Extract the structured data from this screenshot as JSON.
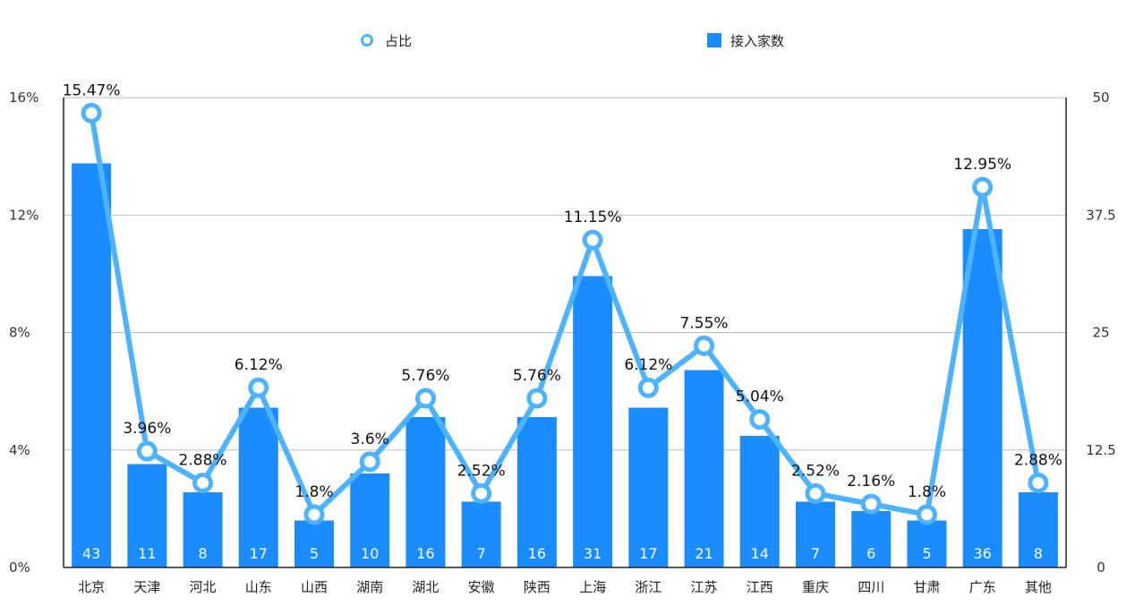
{
  "chart_data": {
    "type": "bar",
    "categories": [
      "北京",
      "天津",
      "河北",
      "山东",
      "山西",
      "湖南",
      "湖北",
      "安徽",
      "陕西",
      "上海",
      "浙江",
      "江苏",
      "江西",
      "重庆",
      "四川",
      "甘肃",
      "广东",
      "其他"
    ],
    "series": [
      {
        "name": "接入家数",
        "type": "bar",
        "axis": "right",
        "values": [
          43,
          11,
          8,
          17,
          5,
          10,
          16,
          7,
          16,
          31,
          17,
          21,
          14,
          7,
          6,
          5,
          36,
          8
        ],
        "labels": [
          "43",
          "11",
          "8",
          "17",
          "5",
          "10",
          "16",
          "7",
          "16",
          "31",
          "17",
          "21",
          "14",
          "7",
          "6",
          "5",
          "36",
          "8"
        ]
      },
      {
        "name": "占比",
        "type": "line",
        "axis": "left",
        "values": [
          15.47,
          3.96,
          2.88,
          6.12,
          1.8,
          3.6,
          5.76,
          2.52,
          5.76,
          11.15,
          6.12,
          7.55,
          5.04,
          2.52,
          2.16,
          1.8,
          12.95,
          2.88
        ],
        "labels": [
          "15.47%",
          "3.96%",
          "2.88%",
          "6.12%",
          "1.8%",
          "3.6%",
          "5.76%",
          "2.52%",
          "5.76%",
          "11.15%",
          "6.12%",
          "7.55%",
          "5.04%",
          "2.52%",
          "2.16%",
          "1.8%",
          "12.95%",
          "2.88%"
        ]
      }
    ],
    "y_left": {
      "range": [
        0,
        16
      ],
      "ticks": [
        "0%",
        "4%",
        "8%",
        "12%",
        "16%"
      ]
    },
    "y_right": {
      "range": [
        0,
        50
      ],
      "ticks": [
        "0",
        "12.5",
        "25",
        "37.5",
        "50"
      ]
    },
    "grid": true,
    "legend_position": "top",
    "colors": {
      "bar": "#1a8cff",
      "line": "#4db3ff",
      "grid": "#bbbbbb"
    }
  }
}
